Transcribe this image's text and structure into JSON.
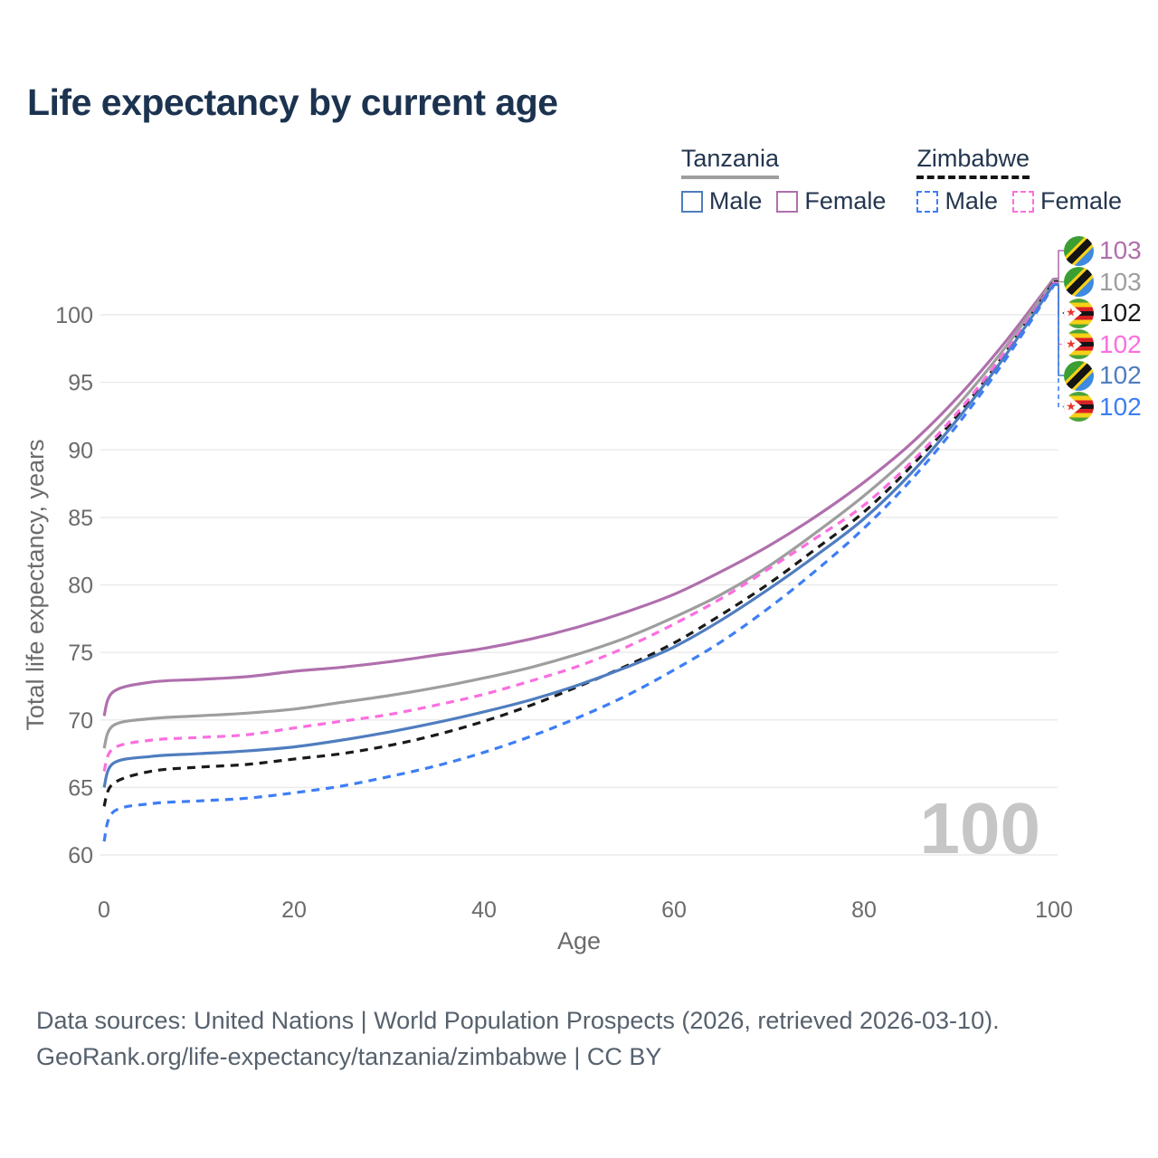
{
  "title": "Life expectancy by current age",
  "legend": {
    "groups": [
      {
        "name": "Tanzania",
        "underline_style": "solid",
        "underline_color": "#9e9e9e",
        "items": [
          {
            "label": "Male",
            "color": "#4f7dbf",
            "dashed": false
          },
          {
            "label": "Female",
            "color": "#b06fad",
            "dashed": false
          }
        ]
      },
      {
        "name": "Zimbabwe",
        "underline_style": "dashed",
        "underline_color": "#141414",
        "items": [
          {
            "label": "Male",
            "color": "#3d7ef5",
            "dashed": true
          },
          {
            "label": "Female",
            "color": "#fb6ee0",
            "dashed": true
          }
        ]
      }
    ]
  },
  "chart_data": {
    "type": "line",
    "title": "Life expectancy by current age",
    "xlabel": "Age",
    "ylabel": "Total life expectancy, years",
    "xlim": [
      0,
      100
    ],
    "ylim": [
      60,
      103.5
    ],
    "x_ticks": [
      0,
      20,
      40,
      60,
      80,
      100
    ],
    "y_ticks": [
      60,
      65,
      70,
      75,
      80,
      85,
      90,
      95,
      100
    ],
    "grid": "horizontal",
    "grid_color": "#ebebeb",
    "axis_text_color": "#6b6b6b",
    "watermark": "100",
    "watermark_color": "#c6c6c6",
    "x": [
      0,
      1,
      5,
      10,
      15,
      20,
      25,
      30,
      35,
      40,
      45,
      50,
      55,
      60,
      65,
      70,
      75,
      80,
      85,
      90,
      95,
      100
    ],
    "series": [
      {
        "name": "Tanzania Female",
        "country": "Tanzania",
        "sex": "Female",
        "color": "#b06fad",
        "dashed": false,
        "flag": "tanzania",
        "end_label": "103",
        "values": [
          70.3,
          72.1,
          72.8,
          73.0,
          73.2,
          73.6,
          73.9,
          74.3,
          74.8,
          75.3,
          76.0,
          76.9,
          78.0,
          79.3,
          81.0,
          82.9,
          85.1,
          87.6,
          90.5,
          94.0,
          98.1,
          102.7
        ]
      },
      {
        "name": "Tanzania Total",
        "country": "Tanzania",
        "sex": "Both",
        "color": "#9e9e9e",
        "dashed": false,
        "flag": "tanzania",
        "end_label": "103",
        "values": [
          67.9,
          69.6,
          70.1,
          70.3,
          70.5,
          70.8,
          71.3,
          71.8,
          72.4,
          73.1,
          73.9,
          74.9,
          76.1,
          77.6,
          79.3,
          81.4,
          83.9,
          86.6,
          89.7,
          93.4,
          97.7,
          102.6
        ]
      },
      {
        "name": "Zimbabwe Total",
        "country": "Zimbabwe",
        "sex": "Both",
        "color": "#1a1a1a",
        "dashed": true,
        "flag": "zimbabwe",
        "end_label": "102",
        "values": [
          63.6,
          65.3,
          66.2,
          66.5,
          66.7,
          67.1,
          67.5,
          68.1,
          68.9,
          69.9,
          71.1,
          72.5,
          74.0,
          75.7,
          77.8,
          80.1,
          82.7,
          85.4,
          88.8,
          92.7,
          97.3,
          102.5
        ]
      },
      {
        "name": "Zimbabwe Female",
        "country": "Zimbabwe",
        "sex": "Female",
        "color": "#fb6ee0",
        "dashed": true,
        "flag": "zimbabwe",
        "end_label": "102",
        "values": [
          66.2,
          67.9,
          68.5,
          68.7,
          68.9,
          69.4,
          69.9,
          70.4,
          71.1,
          71.9,
          72.9,
          74.0,
          75.4,
          77.1,
          79.0,
          81.2,
          83.5,
          85.9,
          89.1,
          92.9,
          97.4,
          102.4
        ]
      },
      {
        "name": "Tanzania Male",
        "country": "Tanzania",
        "sex": "Male",
        "color": "#4f7dbf",
        "dashed": false,
        "flag": "tanzania",
        "end_label": "102",
        "values": [
          65.0,
          66.8,
          67.3,
          67.5,
          67.7,
          68.0,
          68.5,
          69.1,
          69.8,
          70.6,
          71.5,
          72.6,
          73.9,
          75.4,
          77.4,
          79.7,
          82.2,
          84.9,
          88.3,
          92.4,
          97.1,
          102.3
        ]
      },
      {
        "name": "Zimbabwe Male",
        "country": "Zimbabwe",
        "sex": "Male",
        "color": "#3d7ef5",
        "dashed": true,
        "flag": "zimbabwe",
        "end_label": "102",
        "values": [
          61.0,
          63.2,
          63.8,
          64.0,
          64.2,
          64.6,
          65.1,
          65.8,
          66.6,
          67.6,
          68.8,
          70.2,
          71.8,
          73.7,
          75.8,
          78.3,
          81.1,
          84.2,
          87.8,
          92.0,
          96.8,
          102.2
        ]
      }
    ]
  },
  "footer": {
    "line1": "Data sources: United Nations | World Population Prospects (2026, retrieved 2026-03-10).",
    "line2": "GeoRank.org/life-expectancy/tanzania/zimbabwe | CC BY"
  }
}
